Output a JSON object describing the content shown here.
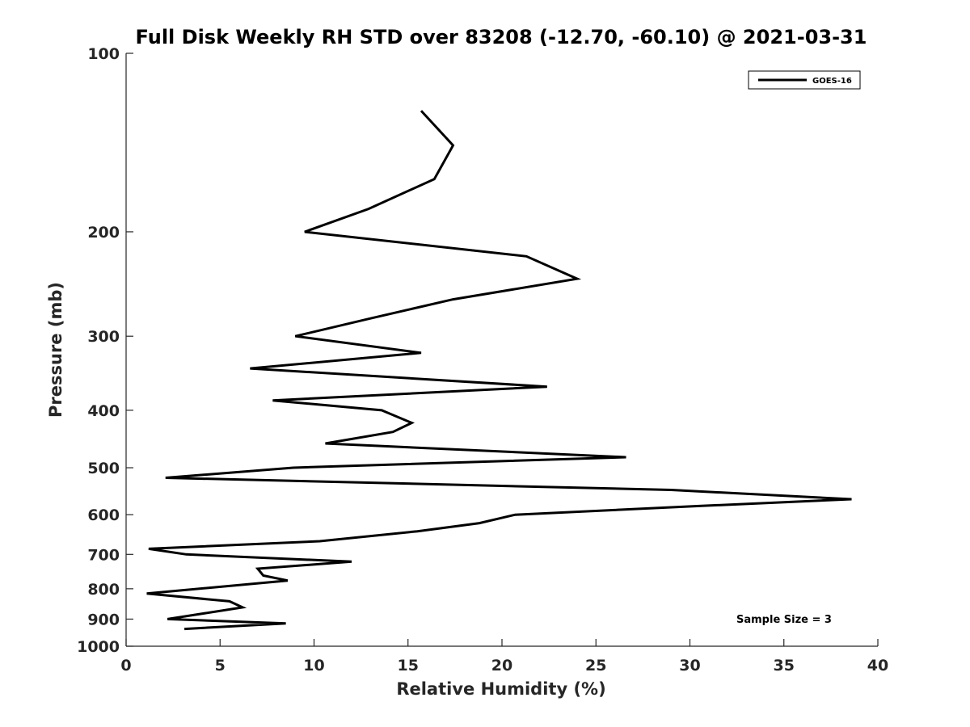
{
  "chart_data": {
    "type": "line",
    "title": "Full Disk Weekly RH STD over 83208 (-12.70, -60.10) @ 2021-03-31",
    "xlabel": "Relative Humidity (%)",
    "ylabel": "Pressure (mb)",
    "xlim": [
      0,
      40
    ],
    "ylim": [
      1000,
      100
    ],
    "y_scale": "log",
    "x_ticks": [
      "0",
      "5",
      "10",
      "15",
      "20",
      "25",
      "30",
      "35",
      "40"
    ],
    "y_ticks": [
      "100",
      "200",
      "300",
      "400",
      "500",
      "600",
      "700",
      "800",
      "900",
      "1000"
    ],
    "grid": false,
    "legend_position": "top-right",
    "annotation": "Sample Size = 3",
    "series": [
      {
        "name": "GOES-16",
        "color": "#000000",
        "points": [
          {
            "x": 15.7,
            "y": 125
          },
          {
            "x": 17.4,
            "y": 143
          },
          {
            "x": 16.4,
            "y": 163
          },
          {
            "x": 12.9,
            "y": 183
          },
          {
            "x": 9.5,
            "y": 200
          },
          {
            "x": 21.3,
            "y": 220
          },
          {
            "x": 24.0,
            "y": 240
          },
          {
            "x": 17.4,
            "y": 260
          },
          {
            "x": 13.0,
            "y": 280
          },
          {
            "x": 9.0,
            "y": 300
          },
          {
            "x": 15.7,
            "y": 320
          },
          {
            "x": 6.6,
            "y": 340
          },
          {
            "x": 22.4,
            "y": 365
          },
          {
            "x": 7.8,
            "y": 385
          },
          {
            "x": 13.6,
            "y": 400
          },
          {
            "x": 15.2,
            "y": 420
          },
          {
            "x": 14.2,
            "y": 435
          },
          {
            "x": 10.6,
            "y": 455
          },
          {
            "x": 26.6,
            "y": 480
          },
          {
            "x": 8.9,
            "y": 500
          },
          {
            "x": 2.1,
            "y": 520
          },
          {
            "x": 29.0,
            "y": 545
          },
          {
            "x": 38.6,
            "y": 565
          },
          {
            "x": 30.5,
            "y": 580
          },
          {
            "x": 20.7,
            "y": 600
          },
          {
            "x": 18.8,
            "y": 620
          },
          {
            "x": 15.5,
            "y": 640
          },
          {
            "x": 10.3,
            "y": 665
          },
          {
            "x": 1.2,
            "y": 685
          },
          {
            "x": 3.2,
            "y": 700
          },
          {
            "x": 12.0,
            "y": 720
          },
          {
            "x": 7.0,
            "y": 740
          },
          {
            "x": 7.3,
            "y": 760
          },
          {
            "x": 8.6,
            "y": 775
          },
          {
            "x": 1.1,
            "y": 815
          },
          {
            "x": 5.5,
            "y": 840
          },
          {
            "x": 6.2,
            "y": 860
          },
          {
            "x": 2.2,
            "y": 900
          },
          {
            "x": 8.5,
            "y": 915
          },
          {
            "x": 3.1,
            "y": 935
          }
        ]
      }
    ]
  }
}
